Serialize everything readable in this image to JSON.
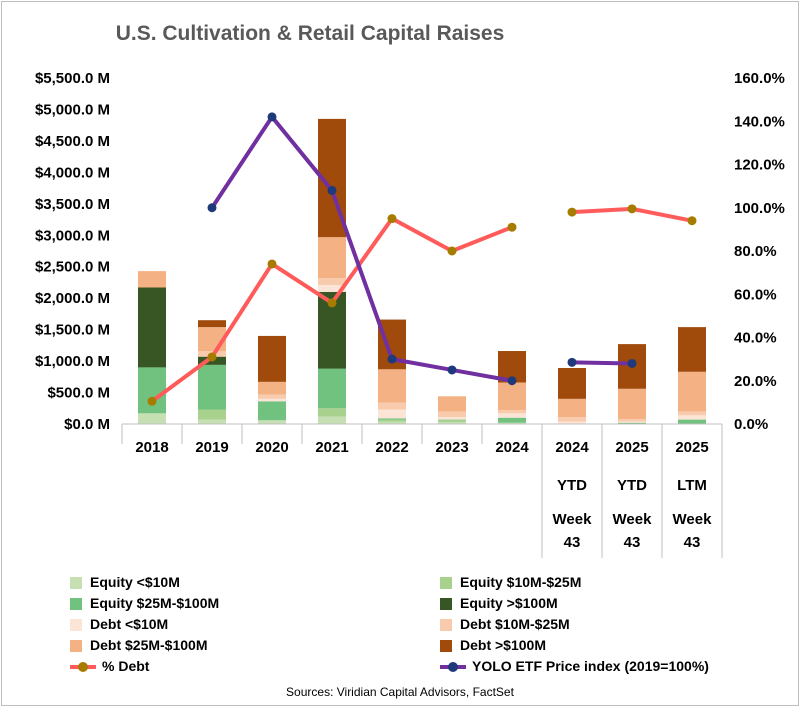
{
  "chart_data": {
    "type": "bar",
    "title": "U.S. Cultivation & Retail Capital Raises",
    "categories": [
      [
        "2018"
      ],
      [
        "2019"
      ],
      [
        "2020"
      ],
      [
        "2021"
      ],
      [
        "2022"
      ],
      [
        "2023"
      ],
      [
        "2024"
      ],
      [
        "2024",
        "YTD",
        "Week",
        "43"
      ],
      [
        "2025",
        "YTD",
        "Week",
        "43"
      ],
      [
        "2025",
        "LTM",
        "Week",
        "43"
      ]
    ],
    "y_left": {
      "min": 0,
      "max": 5500,
      "step": 500,
      "tick_labels": [
        "$0.0 M",
        "$500.0 M",
        "$1,000.0 M",
        "$1,500.0 M",
        "$2,000.0 M",
        "$2,500.0 M",
        "$3,000.0 M",
        "$3,500.0 M",
        "$4,000.0 M",
        "$4,500.0 M",
        "$5,000.0 M",
        "$5,500.0 M"
      ]
    },
    "y_right": {
      "min": 0,
      "max": 160,
      "step": 20,
      "tick_labels": [
        "0.0%",
        "20.0%",
        "40.0%",
        "60.0%",
        "80.0%",
        "100.0%",
        "120.0%",
        "140.0%",
        "160.0%"
      ]
    },
    "stacked_series": [
      {
        "name": "Equity <$10M",
        "color": "#c6e0b4",
        "values": [
          170,
          70,
          60,
          120,
          40,
          30,
          20,
          0,
          0,
          0
        ]
      },
      {
        "name": "Equity $10M-$25M",
        "color": "#a9d18e",
        "values": [
          0,
          160,
          0,
          130,
          30,
          30,
          0,
          0,
          0,
          0
        ]
      },
      {
        "name": "Equity $25M-$100M",
        "color": "#70c27e",
        "values": [
          730,
          710,
          300,
          630,
          20,
          10,
          80,
          0,
          20,
          70
        ]
      },
      {
        "name": "Equity >$100M",
        "color": "#375623",
        "values": [
          1270,
          130,
          0,
          1220,
          0,
          0,
          0,
          0,
          0,
          0
        ]
      },
      {
        "name": "Debt <$10M",
        "color": "#fce4d6",
        "values": [
          0,
          0,
          40,
          110,
          140,
          40,
          70,
          40,
          20,
          70
        ]
      },
      {
        "name": "Debt $10M-$25M",
        "color": "#f8cbad",
        "values": [
          0,
          90,
          70,
          110,
          110,
          90,
          50,
          70,
          40,
          60
        ]
      },
      {
        "name": "Debt $25M-$100M",
        "color": "#f4b183",
        "values": [
          260,
          380,
          200,
          650,
          530,
          240,
          440,
          290,
          480,
          630
        ]
      },
      {
        "name": "Debt >$100M",
        "color": "#a04a0c",
        "values": [
          0,
          110,
          730,
          1880,
          790,
          0,
          500,
          490,
          710,
          710
        ]
      }
    ],
    "line_series": [
      {
        "name": "% Debt",
        "color": "#ff5b5b",
        "marker": "#a67c00",
        "values": [
          10.5,
          31,
          74,
          56,
          95,
          80,
          91,
          null,
          null,
          null
        ]
      },
      {
        "name": "% Debt",
        "color": "#ff5b5b",
        "marker": "#a67c00",
        "values": [
          null,
          null,
          null,
          null,
          null,
          null,
          null,
          98,
          99.5,
          94
        ]
      },
      {
        "name": "YOLO ETF Price index (2019=100%)",
        "color": "#7030a0",
        "marker": "#1f3a7a",
        "values": [
          null,
          100,
          142,
          108,
          30,
          25,
          20,
          null,
          null,
          null
        ]
      },
      {
        "name": "YOLO ETF Price index (2019=100%)",
        "color": "#7030a0",
        "marker": "#1f3a7a",
        "values": [
          null,
          null,
          null,
          null,
          null,
          null,
          null,
          28.5,
          28,
          null
        ]
      }
    ]
  },
  "legend": [
    {
      "label": "Equity <$10M",
      "kind": "box",
      "color": "#c6e0b4"
    },
    {
      "label": "Equity $10M-$25M",
      "kind": "box",
      "color": "#a9d18e"
    },
    {
      "label": "Equity $25M-$100M",
      "kind": "box",
      "color": "#70c27e"
    },
    {
      "label": "Equity >$100M",
      "kind": "box",
      "color": "#375623"
    },
    {
      "label": "Debt <$10M",
      "kind": "box",
      "color": "#fce4d6"
    },
    {
      "label": "Debt $10M-$25M",
      "kind": "box",
      "color": "#f8cbad"
    },
    {
      "label": "Debt $25M-$100M",
      "kind": "box",
      "color": "#f4b183"
    },
    {
      "label": "Debt >$100M",
      "kind": "box",
      "color": "#a04a0c"
    },
    {
      "label": "% Debt",
      "kind": "line",
      "color": "#ff5b5b",
      "marker": "#a67c00"
    },
    {
      "label": "YOLO ETF Price index (2019=100%)",
      "kind": "line",
      "color": "#7030a0",
      "marker": "#1f3a7a"
    }
  ],
  "source": "Sources: Viridian Capital Advisors, FactSet"
}
